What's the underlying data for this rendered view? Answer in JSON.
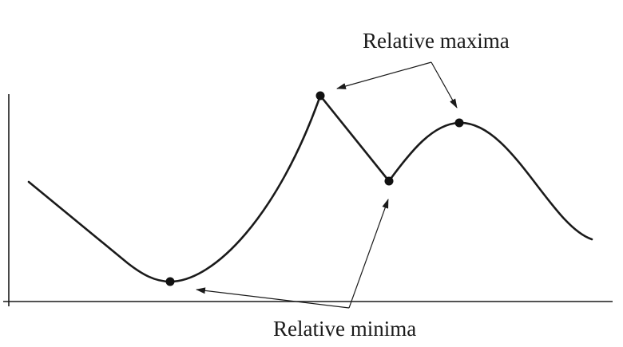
{
  "labels": {
    "maxima": "Relative maxima",
    "minima": "Relative minima"
  },
  "points": [
    {
      "name": "relative-minimum-1",
      "kind": "minimum"
    },
    {
      "name": "relative-maximum-1",
      "kind": "maximum"
    },
    {
      "name": "relative-minimum-2",
      "kind": "minimum"
    },
    {
      "name": "relative-maximum-2",
      "kind": "maximum"
    }
  ],
  "colors": {
    "ink": "#1a1a1a",
    "background": "#ffffff"
  }
}
